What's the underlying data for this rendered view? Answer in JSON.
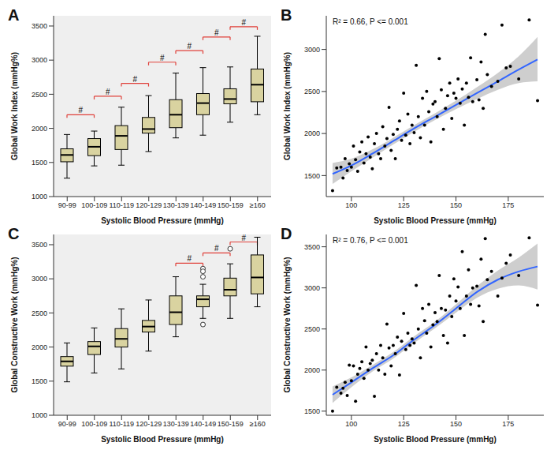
{
  "chart_data": [
    {
      "panel": "A",
      "type": "box",
      "x_label": "Systolic Blood Pressure (mmHg)",
      "y_label": "Global Work Index (mmHg%)",
      "color": "#d9d3a0",
      "categories": [
        "90-99",
        "100-109",
        "110-119",
        "120-129",
        "130-139",
        "140-149",
        "150-159",
        "≥160"
      ],
      "boxes": [
        {
          "min": 1270,
          "q1": 1510,
          "median": 1610,
          "q3": 1700,
          "max": 1910,
          "outliers": []
        },
        {
          "min": 1450,
          "q1": 1600,
          "median": 1730,
          "q3": 1850,
          "max": 1960,
          "outliers": []
        },
        {
          "min": 1460,
          "q1": 1690,
          "median": 1890,
          "q3": 2040,
          "max": 2310,
          "outliers": []
        },
        {
          "min": 1660,
          "q1": 1930,
          "median": 1990,
          "q3": 2160,
          "max": 2480,
          "outliers": []
        },
        {
          "min": 1860,
          "q1": 2010,
          "median": 2200,
          "q3": 2420,
          "max": 2810,
          "outliers": []
        },
        {
          "min": 1900,
          "q1": 2200,
          "median": 2370,
          "q3": 2510,
          "max": 2890,
          "outliers": []
        },
        {
          "min": 2090,
          "q1": 2360,
          "median": 2430,
          "q3": 2580,
          "max": 2900,
          "outliers": []
        },
        {
          "min": 2200,
          "q1": 2390,
          "median": 2640,
          "q3": 2870,
          "max": 3350,
          "outliers": []
        }
      ],
      "significance": [
        {
          "from": "90-99",
          "to": "100-109",
          "y": 2200,
          "label": "#"
        },
        {
          "from": "100-109",
          "to": "110-119",
          "y": 2470,
          "label": "#"
        },
        {
          "from": "110-119",
          "to": "120-129",
          "y": 2660,
          "label": "#"
        },
        {
          "from": "120-129",
          "to": "130-139",
          "y": 2970,
          "label": "#"
        },
        {
          "from": "130-139",
          "to": "140-149",
          "y": 3140,
          "label": "#"
        },
        {
          "from": "140-149",
          "to": "150-159",
          "y": 3340,
          "label": "#"
        },
        {
          "from": "150-159",
          "to": "≥160",
          "y": 3490,
          "label": "#"
        }
      ],
      "ylim": [
        1000,
        3650
      ],
      "yticks": [
        1000,
        1500,
        2000,
        2500,
        3000,
        3500
      ]
    },
    {
      "panel": "B",
      "type": "scatter",
      "x_label": "Systolic Blood Pressure (mmHg)",
      "y_label": "Global Work Index (mmHg%)",
      "color": "#000000",
      "annotation": "R² = 0.66, P <= 0.001",
      "x": [
        91,
        93,
        95,
        96,
        97,
        98,
        99,
        100,
        101,
        102,
        103,
        104,
        105,
        106,
        107,
        108,
        109,
        110,
        111,
        112,
        113,
        114,
        115,
        116,
        117,
        118,
        119,
        120,
        121,
        122,
        123,
        124,
        125,
        126,
        127,
        128,
        129,
        130,
        131,
        132,
        133,
        134,
        135,
        136,
        137,
        138,
        139,
        140,
        141,
        142,
        143,
        144,
        145,
        146,
        147,
        148,
        149,
        150,
        151,
        152,
        153,
        154,
        155,
        156,
        157,
        158,
        160,
        161,
        162,
        163,
        164,
        165,
        167,
        170,
        172,
        174,
        176,
        180,
        185,
        189
      ],
      "y": [
        1320,
        1590,
        1600,
        1470,
        1700,
        1560,
        1640,
        1600,
        1850,
        1690,
        1550,
        1780,
        1900,
        1650,
        1760,
        1960,
        1720,
        1580,
        1880,
        2000,
        1760,
        1700,
        2080,
        1850,
        1940,
        2310,
        1800,
        1990,
        1700,
        2050,
        2150,
        1920,
        2480,
        1980,
        2230,
        1880,
        2100,
        2010,
        2810,
        2200,
        1950,
        2420,
        2100,
        2500,
        2260,
        1900,
        2350,
        2380,
        2200,
        2890,
        2520,
        2050,
        2300,
        2450,
        2600,
        2180,
        2480,
        2420,
        2650,
        2360,
        2530,
        2100,
        2600,
        2430,
        2900,
        2380,
        2640,
        2400,
        2850,
        2300,
        3180,
        2700,
        2560,
        2620,
        3290,
        2780,
        2800,
        2650,
        3350,
        2390
      ],
      "fit": {
        "color": "#3366ff",
        "x": [
          91,
          100,
          110,
          120,
          130,
          140,
          150,
          160,
          170,
          180,
          189
        ],
        "y": [
          1520,
          1620,
          1760,
          1910,
          2060,
          2200,
          2340,
          2480,
          2620,
          2760,
          2880
        ],
        "lower": [
          1400,
          1550,
          1710,
          1870,
          2020,
          2160,
          2290,
          2410,
          2520,
          2600,
          2620
        ],
        "upper": [
          1650,
          1700,
          1810,
          1950,
          2100,
          2240,
          2390,
          2550,
          2720,
          2920,
          3150
        ]
      },
      "xlim": [
        88,
        192
      ],
      "xticks": [
        100,
        125,
        150,
        175
      ],
      "ylim": [
        1250,
        3400
      ],
      "yticks": [
        1500,
        2000,
        2500,
        3000
      ]
    },
    {
      "panel": "C",
      "type": "box",
      "x_label": "Systolic Blood Pressure (mmHg)",
      "y_label": "Global Constructive Work (mmHg%)",
      "color": "#d9d3a0",
      "categories": [
        "90-99",
        "100-109",
        "110-119",
        "120-129",
        "130-139",
        "140-149",
        "150-159",
        "≥160"
      ],
      "boxes": [
        {
          "min": 1490,
          "q1": 1720,
          "median": 1790,
          "q3": 1860,
          "max": 2060,
          "outliers": []
        },
        {
          "min": 1620,
          "q1": 1890,
          "median": 2010,
          "q3": 2080,
          "max": 2280,
          "outliers": []
        },
        {
          "min": 1680,
          "q1": 2000,
          "median": 2120,
          "q3": 2270,
          "max": 2560,
          "outliers": []
        },
        {
          "min": 1940,
          "q1": 2220,
          "median": 2300,
          "q3": 2390,
          "max": 2690,
          "outliers": []
        },
        {
          "min": 2150,
          "q1": 2330,
          "median": 2510,
          "q3": 2750,
          "max": 3030,
          "outliers": []
        },
        {
          "min": 2420,
          "q1": 2590,
          "median": 2700,
          "q3": 2750,
          "max": 2920,
          "outliers": [
            3150,
            3110,
            3030,
            2330
          ]
        },
        {
          "min": 2420,
          "q1": 2750,
          "median": 2840,
          "q3": 3010,
          "max": 3220,
          "outliers": [
            3440
          ]
        },
        {
          "min": 2590,
          "q1": 2780,
          "median": 3020,
          "q3": 3350,
          "max": 3610,
          "outliers": []
        }
      ],
      "significance": [
        {
          "from": "130-139",
          "to": "140-149",
          "y": 3230,
          "label": "#"
        },
        {
          "from": "140-149",
          "to": "150-159",
          "y": 3380,
          "label": "#"
        },
        {
          "from": "150-159",
          "to": "≥160",
          "y": 3540,
          "label": "#"
        }
      ],
      "ylim": [
        1000,
        3650
      ],
      "yticks": [
        1000,
        1500,
        2000,
        2500,
        3000,
        3500
      ]
    },
    {
      "panel": "D",
      "type": "scatter",
      "x_label": "Systolic Blood Pressure (mmHg)",
      "y_label": "Global Constructive Work (mmHg%)",
      "color": "#000000",
      "annotation": "R² = 0.76, P <= 0.001",
      "x": [
        91,
        93,
        95,
        96,
        97,
        98,
        99,
        100,
        101,
        102,
        103,
        104,
        105,
        106,
        107,
        108,
        109,
        110,
        111,
        112,
        113,
        114,
        115,
        116,
        117,
        118,
        119,
        120,
        121,
        122,
        123,
        124,
        125,
        126,
        127,
        128,
        129,
        130,
        131,
        132,
        133,
        134,
        135,
        136,
        137,
        138,
        139,
        140,
        141,
        142,
        143,
        144,
        145,
        146,
        147,
        148,
        149,
        150,
        151,
        152,
        153,
        154,
        155,
        156,
        157,
        158,
        160,
        161,
        162,
        163,
        164,
        165,
        167,
        170,
        172,
        174,
        176,
        180,
        185,
        189
      ],
      "y": [
        1500,
        1790,
        1720,
        1780,
        1850,
        1690,
        2060,
        1870,
        2050,
        1620,
        1950,
        2020,
        2100,
        1900,
        2280,
        2000,
        2080,
        2120,
        1680,
        2200,
        2000,
        2300,
        2150,
        1950,
        2560,
        2270,
        2050,
        2300,
        2200,
        2400,
        1940,
        2350,
        2690,
        2250,
        2450,
        2300,
        2380,
        2330,
        3030,
        2500,
        2150,
        2750,
        2600,
        2450,
        2800,
        2280,
        2550,
        2700,
        2590,
        3150,
        2750,
        2420,
        2730,
        2330,
        2900,
        2650,
        3110,
        2840,
        3010,
        2750,
        3440,
        2420,
        2900,
        3220,
        2800,
        3000,
        3020,
        2780,
        3350,
        2590,
        3600,
        3100,
        3200,
        2900,
        3120,
        3300,
        3400,
        3150,
        3610,
        2790
      ],
      "fit": {
        "color": "#3366ff",
        "x": [
          91,
          100,
          110,
          120,
          130,
          140,
          150,
          160,
          170,
          180,
          189
        ],
        "y": [
          1700,
          1850,
          2020,
          2180,
          2370,
          2550,
          2750,
          2950,
          3100,
          3200,
          3260
        ],
        "lower": [
          1600,
          1790,
          1980,
          2140,
          2330,
          2510,
          2700,
          2880,
          2990,
          3030,
          2980
        ],
        "upper": [
          1800,
          1910,
          2060,
          2220,
          2410,
          2590,
          2800,
          3020,
          3210,
          3370,
          3540
        ]
      },
      "xlim": [
        88,
        192
      ],
      "xticks": [
        100,
        125,
        150,
        175
      ],
      "ylim": [
        1450,
        3650
      ],
      "yticks": [
        1500,
        2000,
        2500,
        3000,
        3500
      ]
    }
  ]
}
